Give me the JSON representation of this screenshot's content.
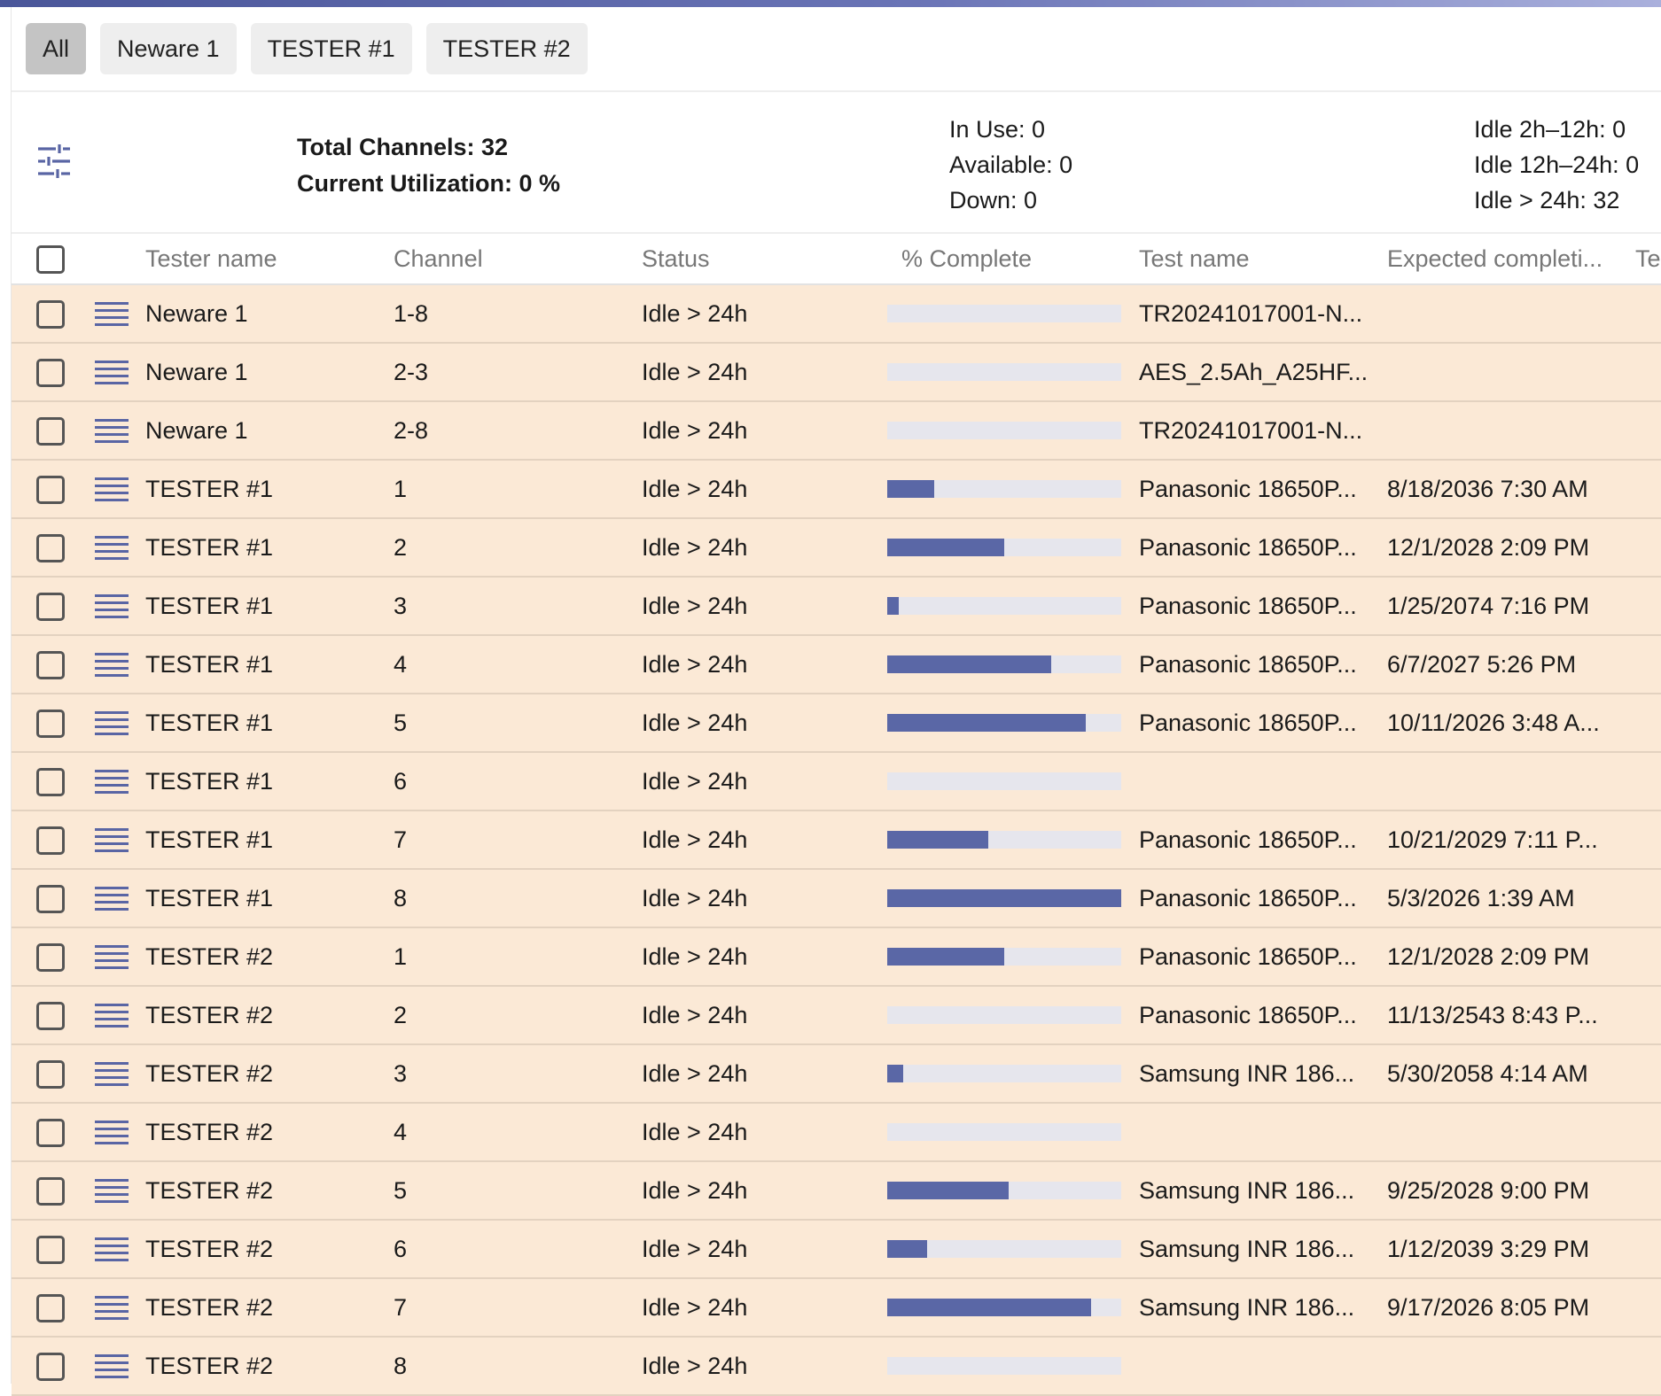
{
  "tabs": [
    {
      "label": "All",
      "active": true
    },
    {
      "label": "Neware 1",
      "active": false
    },
    {
      "label": "TESTER #1",
      "active": false
    },
    {
      "label": "TESTER #2",
      "active": false
    }
  ],
  "summary": {
    "filter_icon": "tune-sliders-icon",
    "total_channels": "Total Channels: 32",
    "current_utilization": "Current Utilization: 0 %",
    "in_use": "In Use: 0",
    "available": "Available: 0",
    "down": "Down: 0",
    "idle_2h_12h": "Idle 2h–12h: 0",
    "idle_12h_24h": "Idle 12h–24h: 0",
    "idle_24h_plus": "Idle > 24h: 32"
  },
  "table": {
    "columns": {
      "tester_name": "Tester name",
      "channel": "Channel",
      "status": "Status",
      "percent_complete": "% Complete",
      "test_name": "Test name",
      "expected_completion": "Expected completi...",
      "extra": "Te"
    },
    "row_icon": "drag-menu-icon",
    "colors": {
      "row_background": "#fbe9d6",
      "progress_fill": "#5a67a6",
      "progress_track": "#e6e6ed"
    },
    "rows": [
      {
        "tester": "Neware 1",
        "channel": "1-8",
        "status": "Idle > 24h",
        "progress": 0,
        "test_name": "TR20241017001-N...",
        "expected": ""
      },
      {
        "tester": "Neware 1",
        "channel": "2-3",
        "status": "Idle > 24h",
        "progress": 0,
        "test_name": "AES_2.5Ah_A25HF...",
        "expected": ""
      },
      {
        "tester": "Neware 1",
        "channel": "2-8",
        "status": "Idle > 24h",
        "progress": 0,
        "test_name": "TR20241017001-N...",
        "expected": ""
      },
      {
        "tester": "TESTER #1",
        "channel": "1",
        "status": "Idle > 24h",
        "progress": 0.2,
        "test_name": "Panasonic 18650P...",
        "expected": "8/18/2036 7:30 AM"
      },
      {
        "tester": "TESTER #1",
        "channel": "2",
        "status": "Idle > 24h",
        "progress": 0.5,
        "test_name": "Panasonic 18650P...",
        "expected": "12/1/2028 2:09 PM"
      },
      {
        "tester": "TESTER #1",
        "channel": "3",
        "status": "Idle > 24h",
        "progress": 0.05,
        "test_name": "Panasonic 18650P...",
        "expected": "1/25/2074 7:16 PM"
      },
      {
        "tester": "TESTER #1",
        "channel": "4",
        "status": "Idle > 24h",
        "progress": 0.7,
        "test_name": "Panasonic 18650P...",
        "expected": "6/7/2027 5:26 PM"
      },
      {
        "tester": "TESTER #1",
        "channel": "5",
        "status": "Idle > 24h",
        "progress": 0.85,
        "test_name": "Panasonic 18650P...",
        "expected": "10/11/2026 3:48 A..."
      },
      {
        "tester": "TESTER #1",
        "channel": "6",
        "status": "Idle > 24h",
        "progress": 0,
        "test_name": "",
        "expected": ""
      },
      {
        "tester": "TESTER #1",
        "channel": "7",
        "status": "Idle > 24h",
        "progress": 0.43,
        "test_name": "Panasonic 18650P...",
        "expected": "10/21/2029 7:11 P..."
      },
      {
        "tester": "TESTER #1",
        "channel": "8",
        "status": "Idle > 24h",
        "progress": 1.0,
        "test_name": "Panasonic 18650P...",
        "expected": "5/3/2026 1:39 AM"
      },
      {
        "tester": "TESTER #2",
        "channel": "1",
        "status": "Idle > 24h",
        "progress": 0.5,
        "test_name": "Panasonic 18650P...",
        "expected": "12/1/2028 2:09 PM"
      },
      {
        "tester": "TESTER #2",
        "channel": "2",
        "status": "Idle > 24h",
        "progress": 0,
        "test_name": "Panasonic 18650P...",
        "expected": "11/13/2543 8:43 P..."
      },
      {
        "tester": "TESTER #2",
        "channel": "3",
        "status": "Idle > 24h",
        "progress": 0.07,
        "test_name": "Samsung INR 186...",
        "expected": "5/30/2058 4:14 AM"
      },
      {
        "tester": "TESTER #2",
        "channel": "4",
        "status": "Idle > 24h",
        "progress": 0,
        "test_name": "",
        "expected": ""
      },
      {
        "tester": "TESTER #2",
        "channel": "5",
        "status": "Idle > 24h",
        "progress": 0.52,
        "test_name": "Samsung INR 186...",
        "expected": "9/25/2028 9:00 PM"
      },
      {
        "tester": "TESTER #2",
        "channel": "6",
        "status": "Idle > 24h",
        "progress": 0.17,
        "test_name": "Samsung INR 186...",
        "expected": "1/12/2039 3:29 PM"
      },
      {
        "tester": "TESTER #2",
        "channel": "7",
        "status": "Idle > 24h",
        "progress": 0.87,
        "test_name": "Samsung INR 186...",
        "expected": "9/17/2026 8:05 PM"
      },
      {
        "tester": "TESTER #2",
        "channel": "8",
        "status": "Idle > 24h",
        "progress": 0,
        "test_name": "",
        "expected": ""
      }
    ]
  }
}
